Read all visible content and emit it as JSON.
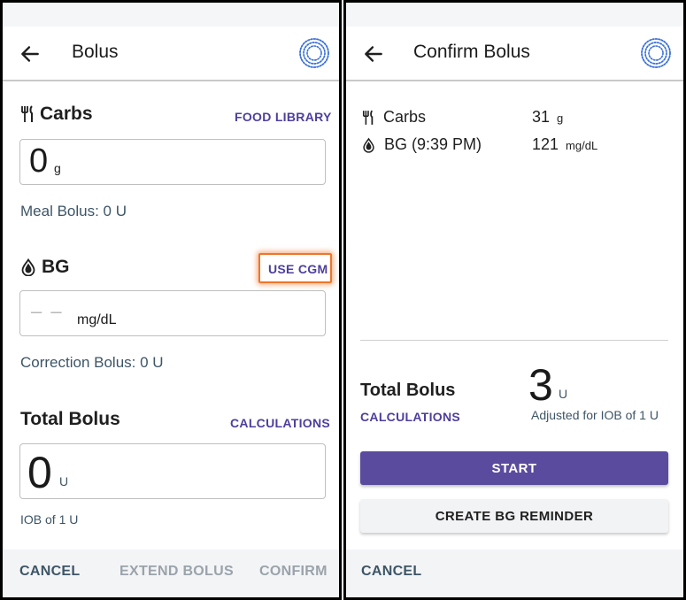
{
  "left": {
    "title": "Bolus",
    "carbs": {
      "label": "Carbs",
      "link": "FOOD LIBRARY",
      "value": "0",
      "unit": "g",
      "meal_bolus": "Meal Bolus: 0 U"
    },
    "bg": {
      "label": "BG",
      "link": "USE CGM",
      "placeholder": "– –",
      "unit": "mg/dL",
      "correction_bolus": "Correction Bolus: 0 U"
    },
    "total": {
      "label": "Total Bolus",
      "link": "CALCULATIONS",
      "value": "0",
      "unit": "U",
      "iob": "IOB of 1 U"
    },
    "footer": {
      "cancel": "CANCEL",
      "extend": "EXTEND BOLUS",
      "confirm": "CONFIRM"
    }
  },
  "right": {
    "title": "Confirm Bolus",
    "carbs": {
      "label": "Carbs",
      "value": "31",
      "unit": "g"
    },
    "bg": {
      "label": "BG (9:39 PM)",
      "value": "121",
      "unit": "mg/dL"
    },
    "total": {
      "label": "Total Bolus",
      "link": "CALCULATIONS",
      "value": "3",
      "unit": "U",
      "note": "Adjusted for IOB of 1 U"
    },
    "start_button": "START",
    "reminder_button": "CREATE BG REMINDER",
    "footer": {
      "cancel": "CANCEL"
    }
  },
  "icons": {
    "back": "arrow-left-icon",
    "logo": "dotted-circle-logo-icon",
    "carbs": "fork-knife-icon",
    "bg": "blood-drop-icon"
  },
  "colors": {
    "accent": "#4e3f9c",
    "primary_button": "#5b4b9e",
    "highlight": "#f0752a",
    "muted_text": "#3d5566",
    "disabled_text": "#9aa3ab"
  }
}
